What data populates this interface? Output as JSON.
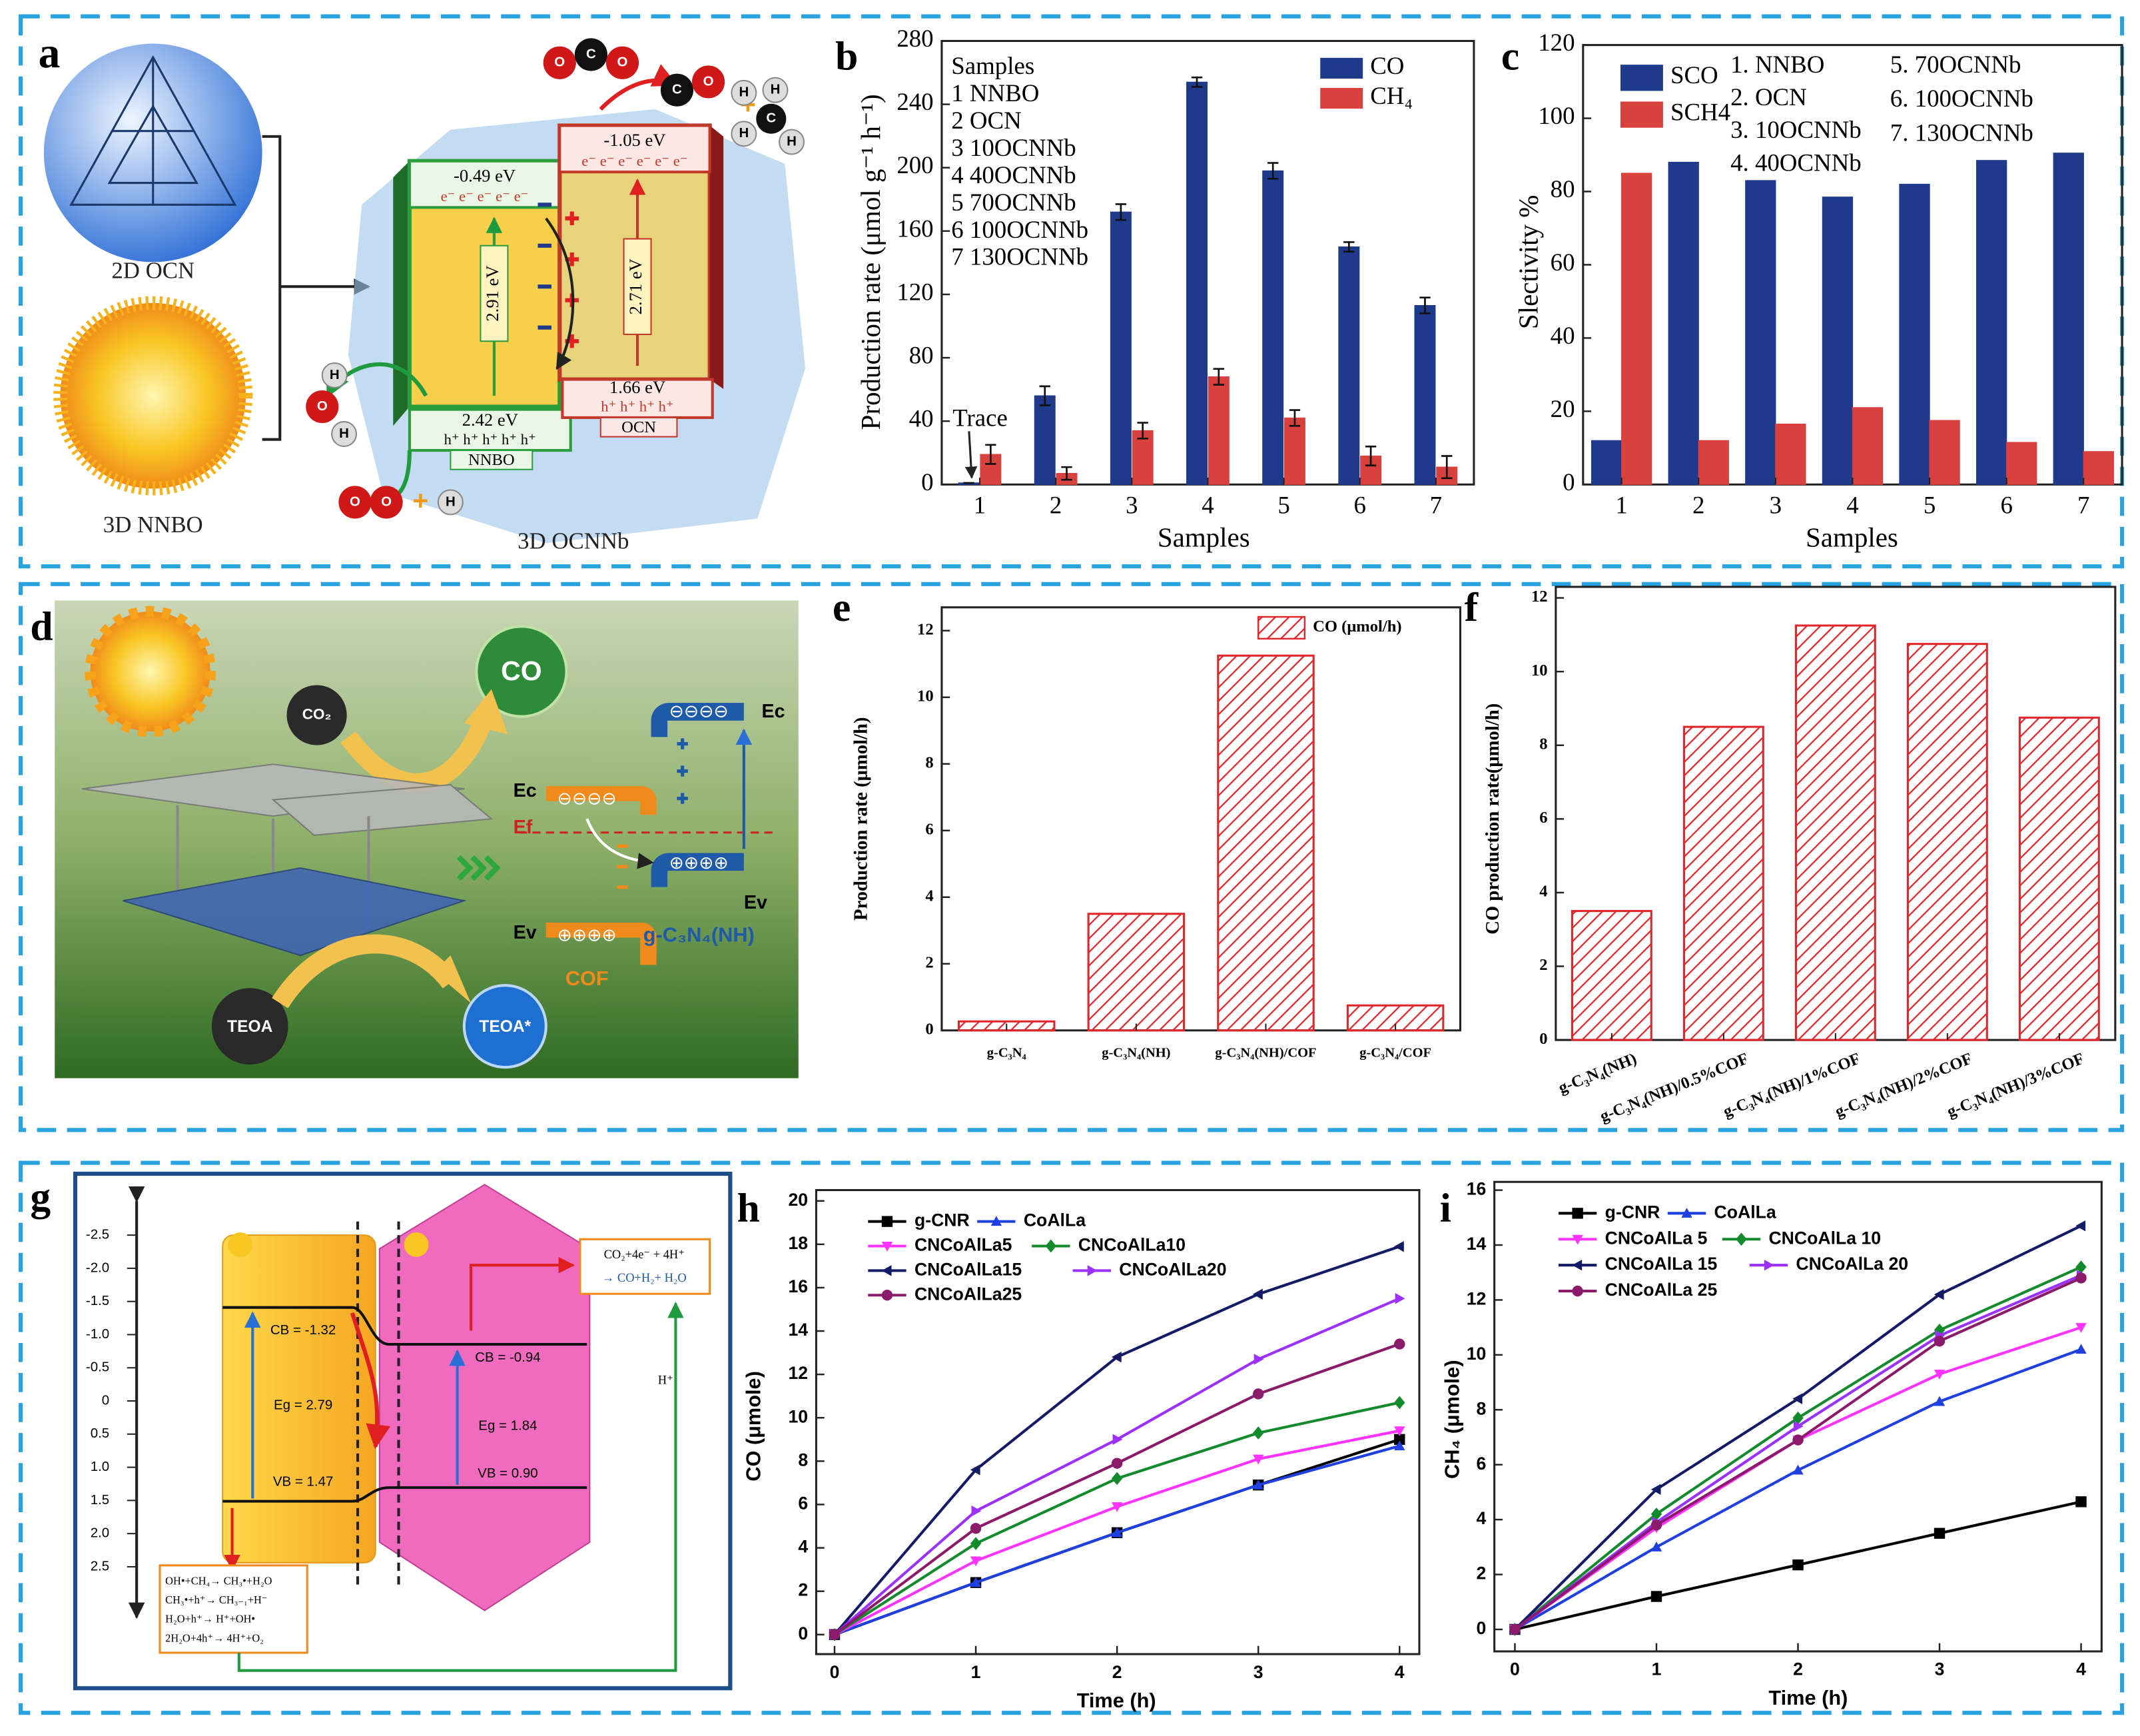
{
  "chart_data": [
    {
      "panel": "b",
      "type": "bar",
      "categories": [
        "1",
        "2",
        "3",
        "4",
        "5",
        "6",
        "7"
      ],
      "xlabel": "Samples",
      "ylabel": "Production rate (μmol g⁻¹ h⁻¹)",
      "ylim": [
        0,
        280
      ],
      "yticks": [
        0,
        40,
        80,
        120,
        160,
        200,
        240,
        280
      ],
      "series": [
        {
          "name": "CO",
          "color": "#1f3a8a",
          "values": [
            1,
            56,
            172,
            254,
            198,
            150,
            113
          ],
          "errors": [
            0,
            6,
            5,
            3,
            5,
            3,
            5
          ]
        },
        {
          "name": "CH₄",
          "color": "#d9413f",
          "values": [
            19,
            7,
            34,
            68,
            42,
            18,
            11
          ],
          "errors": [
            6,
            4,
            5,
            5,
            5,
            6,
            7
          ]
        }
      ],
      "annotations": [
        "Samples",
        "1 NNBO",
        "2 OCN",
        "3 10OCNNb",
        "4 40OCNNb",
        "5 70OCNNb",
        "6 100OCNNb",
        "7 130OCNNb",
        "Trace"
      ]
    },
    {
      "panel": "c",
      "type": "bar",
      "categories": [
        "1",
        "2",
        "3",
        "4",
        "5",
        "6",
        "7"
      ],
      "xlabel": "Samples",
      "ylabel": "Slectivity %",
      "ylim": [
        0,
        120
      ],
      "yticks": [
        0,
        20,
        40,
        60,
        80,
        100,
        120
      ],
      "series": [
        {
          "name": "SCO",
          "color": "#1f3a8a",
          "values": [
            12,
            88,
            83,
            78.5,
            82,
            88.5,
            90.5
          ]
        },
        {
          "name": "SCH4",
          "color": "#d9413f",
          "values": [
            85,
            12,
            16.5,
            21,
            17.5,
            11.5,
            9
          ]
        }
      ],
      "annotations": [
        "1. NNBO",
        "2. OCN",
        "3. 10OCNNb",
        "4. 40OCNNb",
        "5. 70OCNNb",
        "6. 100OCNNb",
        "7. 130OCNNb"
      ]
    },
    {
      "panel": "e",
      "type": "bar",
      "hatch": true,
      "categories": [
        "g-C₃N₄",
        "g-C₃N₄(NH)",
        "g-C₃N₄(NH)/COF",
        "g-C₃N₄/COF"
      ],
      "ylabel": "Production rate (μmol/h)",
      "ylim": [
        0,
        12.7
      ],
      "yticks": [
        0,
        2,
        4,
        6,
        8,
        10,
        12
      ],
      "series": [
        {
          "name": "CO (μmol/h)",
          "color": "#e0262b",
          "values": [
            0.27,
            3.5,
            11.25,
            0.75
          ]
        }
      ]
    },
    {
      "panel": "f",
      "type": "bar",
      "hatch": true,
      "categories": [
        "g-C₃N₄(NH)",
        "g-C₃N₄(NH)/0.5%COF",
        "g-C₃N₄(NH)/1%COF",
        "g-C₃N₄(NH)/2%COF",
        "g-C₃N₄(NH)/3%COF"
      ],
      "ylabel": "CO production rate(μmol/h)",
      "ylim": [
        0,
        12.3
      ],
      "yticks": [
        0,
        2,
        4,
        6,
        8,
        10,
        12
      ],
      "color": "#e0262b",
      "values": [
        3.5,
        8.5,
        11.25,
        10.75,
        8.75
      ]
    },
    {
      "panel": "h",
      "type": "line",
      "xlabel": "Time (h)",
      "ylabel": "CO (μmole)",
      "x": [
        0,
        1,
        2,
        3,
        4
      ],
      "xlim": [
        -0.13,
        4.14
      ],
      "xticks": [
        0,
        1,
        2,
        3,
        4
      ],
      "ylim": [
        -0.9,
        20.5
      ],
      "yticks": [
        0,
        2,
        4,
        6,
        8,
        10,
        12,
        14,
        16,
        18,
        20
      ],
      "series": [
        {
          "name": "g-CNR",
          "color": "#000000",
          "marker": "square",
          "values": [
            0,
            2.4,
            4.7,
            6.9,
            9.0
          ]
        },
        {
          "name": "CoAlLa",
          "color": "#1f3fe0",
          "marker": "tri-up",
          "values": [
            0,
            2.4,
            4.7,
            6.9,
            8.7
          ]
        },
        {
          "name": "CNCoAlLa5",
          "color": "#ff33ff",
          "marker": "tri-down",
          "values": [
            0,
            3.4,
            5.9,
            8.1,
            9.4
          ]
        },
        {
          "name": "CNCoAlLa10",
          "color": "#138a2b",
          "marker": "diamond",
          "values": [
            0,
            4.2,
            7.2,
            9.3,
            10.7
          ]
        },
        {
          "name": "CNCoAlLa15",
          "color": "#141a66",
          "marker": "tri-left",
          "values": [
            0,
            7.6,
            12.8,
            15.7,
            17.9
          ]
        },
        {
          "name": "CNCoAlLa20",
          "color": "#9b30ff",
          "marker": "tri-right",
          "values": [
            0,
            5.7,
            9.0,
            12.7,
            15.5
          ]
        },
        {
          "name": "CNCoAlLa25",
          "color": "#8b1a6b",
          "marker": "circle",
          "values": [
            0,
            4.9,
            7.9,
            11.1,
            13.4
          ]
        }
      ]
    },
    {
      "panel": "i",
      "type": "line",
      "xlabel": "Time (h)",
      "ylabel": "CH₄ (μmole)",
      "x": [
        0,
        1,
        2,
        3,
        4
      ],
      "xlim": [
        -0.145,
        4.145
      ],
      "xticks": [
        0,
        1,
        2,
        3,
        4
      ],
      "ylim": [
        -0.8,
        16.3
      ],
      "yticks": [
        0,
        2,
        4,
        6,
        8,
        10,
        12,
        14,
        16
      ],
      "series": [
        {
          "name": "g-CNR",
          "color": "#000000",
          "marker": "square",
          "values": [
            0,
            1.2,
            2.35,
            3.5,
            4.65
          ]
        },
        {
          "name": "CoAlLa",
          "color": "#1f3fe0",
          "marker": "tri-up",
          "values": [
            0,
            3.0,
            5.8,
            8.3,
            10.2
          ]
        },
        {
          "name": "CNCoAlLa 5",
          "color": "#ff33ff",
          "marker": "tri-down",
          "values": [
            0,
            3.7,
            6.9,
            9.3,
            11.0
          ]
        },
        {
          "name": "CNCoAlLa 10",
          "color": "#138a2b",
          "marker": "diamond",
          "values": [
            0,
            4.2,
            7.7,
            10.9,
            13.2
          ]
        },
        {
          "name": "CNCoAlLa 15",
          "color": "#141a66",
          "marker": "tri-left",
          "values": [
            0,
            5.1,
            8.4,
            12.2,
            14.7
          ]
        },
        {
          "name": "CNCoAlLa 20",
          "color": "#9b30ff",
          "marker": "tri-right",
          "values": [
            0,
            3.9,
            7.4,
            10.7,
            12.9
          ]
        },
        {
          "name": "CNCoAlLa 25",
          "color": "#8b1a6b",
          "marker": "circle",
          "values": [
            0,
            3.8,
            6.9,
            10.5,
            12.8
          ]
        }
      ]
    }
  ],
  "diagrams": {
    "a": {
      "panel": "a",
      "labels": [
        "2D OCN",
        "3D NNBO",
        "3D OCNNb",
        "-0.49 eV",
        "-1.05 eV",
        "2.91 eV",
        "2.71 eV",
        "2.42 eV",
        "1.66 eV",
        "NNBO",
        "OCN",
        "e⁻ e⁻ e⁻ e⁻ e⁻",
        "e⁻ e⁻ e⁻ e⁻ e⁻ e⁻",
        "h⁺ h⁺ h⁺ h⁺ h⁺",
        "h⁺ h⁺ h⁺ h⁺"
      ],
      "atoms": [
        "O",
        "C",
        "O",
        "C",
        "O",
        "C",
        "H",
        "H",
        "H",
        "H",
        "H",
        "O",
        "H",
        "O",
        "O",
        "H"
      ],
      "plus": "+"
    },
    "d": {
      "panel": "d",
      "labels": [
        "CO₂",
        "CO",
        "TEOA",
        "TEOA*",
        "Ec",
        "Ef",
        "Ev",
        "Ec",
        "Ev",
        "COF",
        "g-C₃N₄(NH)",
        "⊖⊖⊖⊖",
        "⊕⊕⊕⊕",
        "⊖⊖⊖⊖",
        "⊕⊕⊕⊕"
      ]
    },
    "g": {
      "panel": "g",
      "scale": [
        "-2.5",
        "-2.0",
        "-1.5",
        "-1.0",
        "-0.5",
        "0",
        "0.5",
        "1.0",
        "1.5",
        "2.0",
        "2.5"
      ],
      "labels": [
        "CB = -1.32",
        "Eg = 2.79",
        "VB = 1.47",
        "CB = -0.94",
        "Eg = 1.84",
        "VB = 0.90",
        "CO₂+4e⁻ + 4H⁺",
        "→ CO+H₂+ H₂O",
        "H⁺"
      ],
      "reactions": [
        "OH•+CH₄→ CH₃•+H₂O",
        "CH₃•+h⁺→ CH₃₋₁+H⁻",
        "H₂O+h⁺→ H⁺+OH•",
        "2H₂O+4h⁺→ 4H⁺+O₂"
      ]
    }
  }
}
